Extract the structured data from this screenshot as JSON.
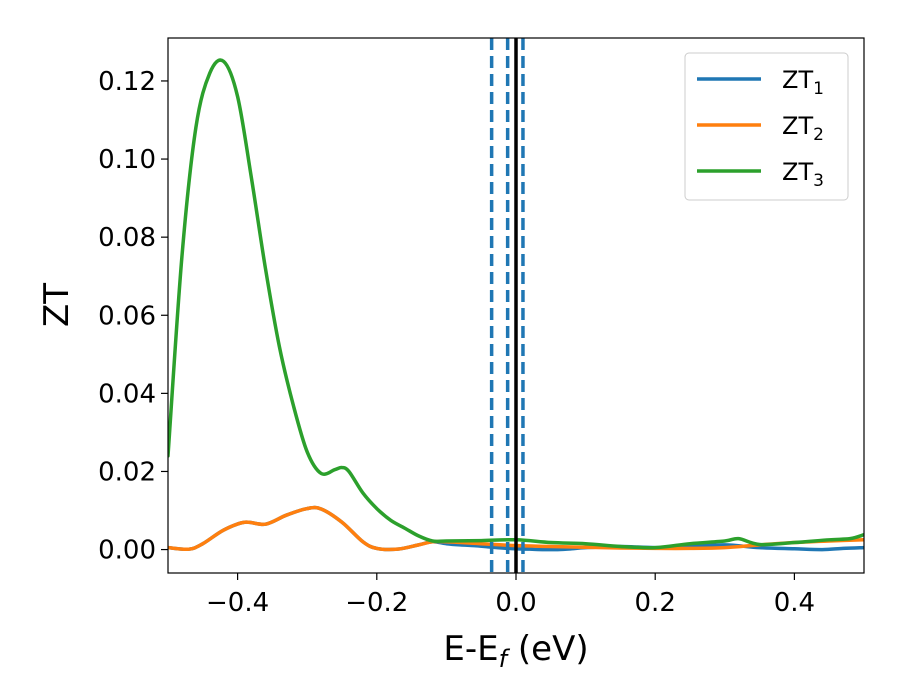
{
  "chart_data": {
    "type": "line",
    "title": "",
    "xlabel": "E-E",
    "xlabel_subscript": "f",
    "xlabel_unit": " (eV)",
    "ylabel": "ZT",
    "xlim": [
      -0.5,
      0.5
    ],
    "ylim": [
      -0.006,
      0.131
    ],
    "x_ticks": [
      -0.4,
      -0.2,
      0.0,
      0.2,
      0.4
    ],
    "x_tick_labels": [
      "−0.4",
      "−0.2",
      "0.0",
      "0.2",
      "0.4"
    ],
    "y_ticks": [
      0.0,
      0.02,
      0.04,
      0.06,
      0.08,
      0.1,
      0.12
    ],
    "y_tick_labels": [
      "0.00",
      "0.02",
      "0.04",
      "0.06",
      "0.08",
      "0.10",
      "0.12"
    ],
    "grid": false,
    "legend_position": "top-right",
    "series": [
      {
        "name": "ZT",
        "name_subscript": "1",
        "color": "#1f77b4",
        "x": [
          -0.5,
          -0.47,
          -0.45,
          -0.42,
          -0.39,
          -0.36,
          -0.33,
          -0.3,
          -0.28,
          -0.25,
          -0.22,
          -0.2,
          -0.17,
          -0.14,
          -0.12,
          -0.1,
          -0.08,
          -0.06,
          -0.04,
          -0.02,
          0.0,
          0.02,
          0.04,
          0.06,
          0.08,
          0.1,
          0.15,
          0.2,
          0.25,
          0.3,
          0.35,
          0.4,
          0.44,
          0.47,
          0.5
        ],
        "y": [
          0.0005,
          0.0001,
          0.0015,
          0.005,
          0.007,
          0.0065,
          0.0088,
          0.0105,
          0.0104,
          0.007,
          0.002,
          0.0003,
          0.0001,
          0.0012,
          0.002,
          0.0015,
          0.0012,
          0.001,
          0.0007,
          0.0004,
          0.0002,
          0.0001,
          0.0,
          0.0,
          0.0002,
          0.0005,
          0.0008,
          0.0005,
          0.0008,
          0.0012,
          0.0005,
          0.0002,
          0.0,
          0.0003,
          0.0005
        ]
      },
      {
        "name": "ZT",
        "name_subscript": "2",
        "color": "#ff7f0e",
        "x": [
          -0.5,
          -0.47,
          -0.45,
          -0.42,
          -0.39,
          -0.36,
          -0.33,
          -0.3,
          -0.28,
          -0.25,
          -0.22,
          -0.2,
          -0.17,
          -0.14,
          -0.12,
          -0.1,
          -0.05,
          0.0,
          0.05,
          0.1,
          0.15,
          0.2,
          0.25,
          0.3,
          0.35,
          0.4,
          0.45,
          0.5
        ],
        "y": [
          0.0005,
          0.0001,
          0.0015,
          0.005,
          0.007,
          0.0065,
          0.0088,
          0.0105,
          0.0104,
          0.007,
          0.002,
          0.0003,
          0.0001,
          0.0012,
          0.002,
          0.002,
          0.0015,
          0.001,
          0.0008,
          0.0006,
          0.0004,
          0.0003,
          0.0003,
          0.0005,
          0.0012,
          0.0018,
          0.0022,
          0.0025
        ]
      },
      {
        "name": "ZT",
        "name_subscript": "3",
        "color": "#2ca02c",
        "x": [
          -0.5,
          -0.48,
          -0.46,
          -0.44,
          -0.42,
          -0.4,
          -0.38,
          -0.36,
          -0.34,
          -0.32,
          -0.3,
          -0.28,
          -0.26,
          -0.25,
          -0.24,
          -0.22,
          -0.2,
          -0.18,
          -0.16,
          -0.14,
          -0.12,
          -0.1,
          -0.05,
          0.0,
          0.05,
          0.1,
          0.15,
          0.2,
          0.25,
          0.3,
          0.32,
          0.35,
          0.4,
          0.45,
          0.48,
          0.5
        ],
        "y": [
          0.024,
          0.075,
          0.108,
          0.122,
          0.125,
          0.116,
          0.095,
          0.072,
          0.052,
          0.037,
          0.025,
          0.0195,
          0.0205,
          0.021,
          0.02,
          0.0145,
          0.0105,
          0.0075,
          0.0055,
          0.0035,
          0.0022,
          0.0022,
          0.0023,
          0.0025,
          0.0018,
          0.0015,
          0.0008,
          0.0005,
          0.0015,
          0.0022,
          0.0028,
          0.0013,
          0.0018,
          0.0025,
          0.0028,
          0.0038
        ]
      }
    ],
    "vertical_lines": [
      {
        "x": 0.0,
        "color": "#000000",
        "style": "solid"
      },
      {
        "x": -0.035,
        "color": "#1f77b4",
        "style": "dashed"
      },
      {
        "x": -0.012,
        "color": "#1f77b4",
        "style": "dashed"
      },
      {
        "x": 0.01,
        "color": "#1f77b4",
        "style": "dashed"
      }
    ]
  }
}
